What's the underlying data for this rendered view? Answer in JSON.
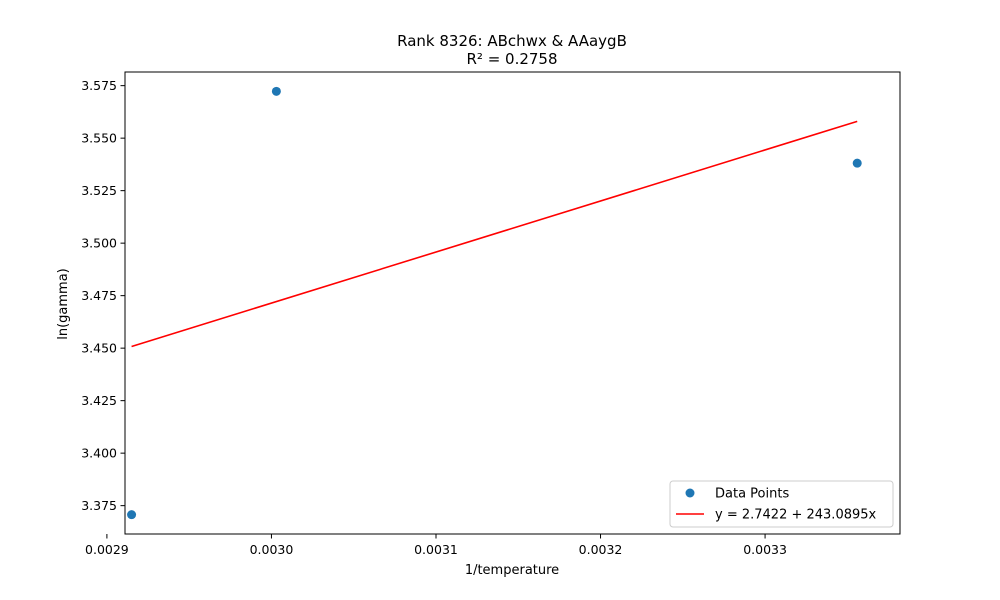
{
  "chart_data": {
    "type": "scatter",
    "title": "Rank 8326: ABchwx & AAaygB",
    "subtitle": "R² = 0.2758",
    "xlabel": "1/temperature",
    "ylabel": "ln(gamma)",
    "xlim": [
      0.002911,
      0.003382
    ],
    "ylim": [
      3.3615,
      3.5815
    ],
    "xticks": [
      0.0029,
      0.003,
      0.0031,
      0.0032,
      0.0033
    ],
    "xtick_labels": [
      "0.0029",
      "0.0030",
      "0.0031",
      "0.0032",
      "0.0033"
    ],
    "yticks": [
      3.375,
      3.4,
      3.425,
      3.45,
      3.475,
      3.5,
      3.525,
      3.55,
      3.575
    ],
    "ytick_labels": [
      "3.375",
      "3.400",
      "3.425",
      "3.450",
      "3.475",
      "3.500",
      "3.525",
      "3.550",
      "3.575"
    ],
    "grid": false,
    "legend_position": "bottom-right",
    "series": [
      {
        "name": "Data Points",
        "kind": "scatter",
        "color": "#1f77b4",
        "x": [
          0.002915,
          0.003003,
          0.003356
        ],
        "y": [
          3.3707,
          3.5723,
          3.5381
        ]
      },
      {
        "name": "y = 2.7422 + 243.0895x",
        "kind": "line",
        "color": "#ff0000",
        "x": [
          0.002915,
          0.003356
        ],
        "y": [
          3.4508,
          3.558
        ]
      }
    ]
  }
}
